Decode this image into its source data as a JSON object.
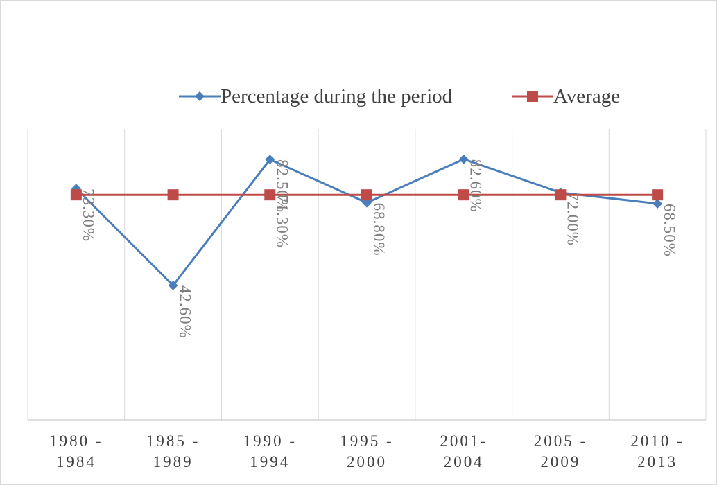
{
  "chart_data": {
    "type": "line",
    "categories": [
      "1980 -\n1984",
      "1985 -\n1989",
      "1990 -\n1994",
      "1995 -\n2000",
      "2001-\n2004",
      "2005 -\n2009",
      "2010 -\n2013"
    ],
    "series": [
      {
        "name": "Percentage during the period",
        "color": "#4a7ebb",
        "marker": "diamond",
        "values": [
          73.3,
          42.6,
          82.5,
          68.8,
          82.6,
          72.0,
          68.5
        ],
        "value_labels": [
          "73.30%",
          "42.60%",
          "82.50%",
          "68.80%",
          "82.60%",
          "72.00%",
          "68.50%"
        ]
      },
      {
        "name": "Average",
        "color": "#be4b48",
        "marker": "square",
        "values": [
          71.3,
          71.3,
          71.3,
          71.3,
          71.3,
          71.3,
          71.3
        ],
        "value_labels": [
          null,
          null,
          "71.30%",
          null,
          null,
          null,
          null
        ]
      }
    ],
    "ylim": [
      0,
      90
    ],
    "grid": "vertical",
    "legend": "top"
  }
}
